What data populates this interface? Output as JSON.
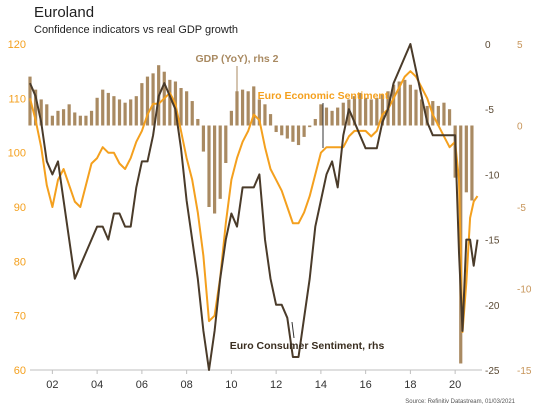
{
  "title": "Euroland",
  "subtitle": "Confidence indicators vs real GDP growth",
  "source": "Source: Refinitiv Datastream, 01/03/2021",
  "colors": {
    "esi": "#f4a01e",
    "consumer": "#4a3b2a",
    "gdp": "#a98a62",
    "left_axis": "#f4a01e",
    "rhs1_axis": "#5b4a35",
    "rhs2_axis": "#c7955a"
  },
  "chart_data": {
    "type": "line",
    "x_ticks": [
      "02",
      "04",
      "06",
      "08",
      "10",
      "12",
      "14",
      "16",
      "18",
      "20"
    ],
    "x_range": [
      2001.0,
      2021.2
    ],
    "axes": {
      "left": {
        "range": [
          60,
          120
        ],
        "ticks": [
          60,
          70,
          80,
          90,
          100,
          110,
          120
        ]
      },
      "rhs1": {
        "range": [
          -25,
          0
        ],
        "ticks": [
          -25,
          -20,
          -15,
          -10,
          -5,
          0
        ]
      },
      "rhs2": {
        "range": [
          -15,
          5
        ],
        "ticks": [
          -15,
          -10,
          -5,
          0,
          5
        ]
      }
    },
    "annotations": [
      {
        "text": "GDP (YoY), rhs 2",
        "color": "#a98a62"
      },
      {
        "text": "Euro Economic Sentiment",
        "color": "#f4a01e"
      },
      {
        "text": "Euro Consumer Sentiment, rhs",
        "color": "#3a2e20"
      }
    ],
    "series": [
      {
        "name": "Euro Economic Sentiment",
        "axis": "left",
        "kind": "line",
        "x": [
          2001.0,
          2001.25,
          2001.5,
          2001.75,
          2002.0,
          2002.25,
          2002.5,
          2002.75,
          2003.0,
          2003.25,
          2003.5,
          2003.75,
          2004.0,
          2004.25,
          2004.5,
          2004.75,
          2005.0,
          2005.25,
          2005.5,
          2005.75,
          2006.0,
          2006.25,
          2006.5,
          2006.75,
          2007.0,
          2007.25,
          2007.5,
          2007.75,
          2008.0,
          2008.25,
          2008.5,
          2008.75,
          2009.0,
          2009.25,
          2009.5,
          2009.75,
          2010.0,
          2010.25,
          2010.5,
          2010.75,
          2011.0,
          2011.25,
          2011.5,
          2011.75,
          2012.0,
          2012.25,
          2012.5,
          2012.75,
          2013.0,
          2013.25,
          2013.5,
          2013.75,
          2014.0,
          2014.25,
          2014.5,
          2014.75,
          2015.0,
          2015.25,
          2015.5,
          2015.75,
          2016.0,
          2016.25,
          2016.5,
          2016.75,
          2017.0,
          2017.25,
          2017.5,
          2017.75,
          2018.0,
          2018.25,
          2018.5,
          2018.75,
          2019.0,
          2019.25,
          2019.5,
          2019.75,
          2020.0,
          2020.17,
          2020.33,
          2020.5,
          2020.67,
          2020.83,
          2021.0
        ],
        "y": [
          110,
          106,
          101,
          94,
          90,
          95,
          97,
          94,
          91,
          90,
          94,
          98,
          99,
          101,
          100,
          100,
          98,
          97,
          99,
          102,
          104,
          107,
          109,
          109,
          110,
          111,
          109,
          104,
          99,
          95,
          89,
          81,
          69,
          70,
          77,
          87,
          95,
          99,
          102,
          104,
          107,
          106,
          101,
          97,
          95,
          93,
          90,
          87,
          87,
          89,
          92,
          96,
          100,
          101,
          101,
          101,
          101,
          103,
          104,
          104,
          104,
          103,
          104,
          107,
          108,
          110,
          112,
          114,
          115,
          114,
          112,
          110,
          107,
          105,
          103,
          101,
          102,
          95,
          67,
          76,
          88,
          91,
          92
        ]
      },
      {
        "name": "Euro Consumer Sentiment",
        "axis": "rhs1",
        "kind": "line",
        "x": [
          2001.0,
          2001.25,
          2001.5,
          2001.75,
          2002.0,
          2002.25,
          2002.5,
          2002.75,
          2003.0,
          2003.25,
          2003.5,
          2003.75,
          2004.0,
          2004.25,
          2004.5,
          2004.75,
          2005.0,
          2005.25,
          2005.5,
          2005.75,
          2006.0,
          2006.25,
          2006.5,
          2006.75,
          2007.0,
          2007.25,
          2007.5,
          2007.75,
          2008.0,
          2008.25,
          2008.5,
          2008.75,
          2009.0,
          2009.25,
          2009.5,
          2009.75,
          2010.0,
          2010.25,
          2010.5,
          2010.75,
          2011.0,
          2011.25,
          2011.5,
          2011.75,
          2012.0,
          2012.25,
          2012.5,
          2012.75,
          2013.0,
          2013.25,
          2013.5,
          2013.75,
          2014.0,
          2014.25,
          2014.5,
          2014.75,
          2015.0,
          2015.25,
          2015.5,
          2015.75,
          2016.0,
          2016.25,
          2016.5,
          2016.75,
          2017.0,
          2017.25,
          2017.5,
          2017.75,
          2018.0,
          2018.25,
          2018.5,
          2018.75,
          2019.0,
          2019.25,
          2019.5,
          2019.75,
          2020.0,
          2020.17,
          2020.33,
          2020.5,
          2020.67,
          2020.83,
          2021.0
        ],
        "y": [
          -3,
          -4,
          -6,
          -9,
          -10,
          -9,
          -12,
          -15,
          -18,
          -17,
          -16,
          -15,
          -14,
          -14,
          -15,
          -13,
          -13,
          -14,
          -14,
          -11,
          -9,
          -9,
          -7,
          -4,
          -3,
          -4,
          -5,
          -8,
          -12,
          -15,
          -18,
          -22,
          -25,
          -22,
          -18,
          -15,
          -13,
          -14,
          -11,
          -11,
          -11,
          -10,
          -15,
          -18,
          -20,
          -20,
          -21,
          -24,
          -24,
          -21,
          -18,
          -14,
          -12,
          -10,
          -9,
          -11,
          -7,
          -5,
          -6,
          -7,
          -8,
          -8,
          -8,
          -6,
          -5,
          -3,
          -2,
          -1,
          0,
          -2,
          -4,
          -6,
          -7,
          -7,
          -7,
          -7,
          -7,
          -16,
          -22,
          -15,
          -15,
          -17,
          -15
        ]
      },
      {
        "name": "GDP (YoY)",
        "axis": "rhs2",
        "kind": "bar",
        "x": [
          2001.0,
          2001.25,
          2001.5,
          2001.75,
          2002.0,
          2002.25,
          2002.5,
          2002.75,
          2003.0,
          2003.25,
          2003.5,
          2003.75,
          2004.0,
          2004.25,
          2004.5,
          2004.75,
          2005.0,
          2005.25,
          2005.5,
          2005.75,
          2006.0,
          2006.25,
          2006.5,
          2006.75,
          2007.0,
          2007.25,
          2007.5,
          2007.75,
          2008.0,
          2008.25,
          2008.5,
          2008.75,
          2009.0,
          2009.25,
          2009.5,
          2009.75,
          2010.0,
          2010.25,
          2010.5,
          2010.75,
          2011.0,
          2011.25,
          2011.5,
          2011.75,
          2012.0,
          2012.25,
          2012.5,
          2012.75,
          2013.0,
          2013.25,
          2013.5,
          2013.75,
          2014.0,
          2014.25,
          2014.5,
          2014.75,
          2015.0,
          2015.25,
          2015.5,
          2015.75,
          2016.0,
          2016.25,
          2016.5,
          2016.75,
          2017.0,
          2017.25,
          2017.5,
          2017.75,
          2018.0,
          2018.25,
          2018.5,
          2018.75,
          2019.0,
          2019.25,
          2019.5,
          2019.75,
          2020.0,
          2020.25,
          2020.5,
          2020.75
        ],
        "y": [
          3.0,
          2.2,
          1.6,
          1.3,
          0.6,
          0.9,
          1.0,
          1.3,
          0.8,
          0.6,
          0.6,
          0.9,
          1.7,
          2.2,
          2.0,
          1.8,
          1.6,
          1.4,
          1.6,
          1.8,
          2.6,
          3.0,
          3.2,
          3.7,
          3.3,
          2.8,
          2.7,
          2.3,
          2.1,
          1.5,
          0.4,
          -1.6,
          -5.0,
          -5.4,
          -4.5,
          -2.3,
          0.9,
          2.1,
          2.2,
          2.1,
          2.4,
          1.6,
          1.3,
          0.7,
          -0.4,
          -0.6,
          -0.8,
          -1.0,
          -1.2,
          -0.7,
          -0.1,
          0.4,
          1.3,
          1.1,
          0.9,
          1.1,
          1.4,
          1.6,
          1.8,
          2.0,
          1.7,
          1.6,
          1.7,
          1.9,
          2.1,
          2.5,
          2.7,
          2.8,
          2.5,
          2.2,
          1.6,
          1.2,
          1.5,
          1.2,
          1.4,
          1.0,
          -3.2,
          -14.6,
          -4.1,
          -4.6
        ]
      }
    ]
  }
}
